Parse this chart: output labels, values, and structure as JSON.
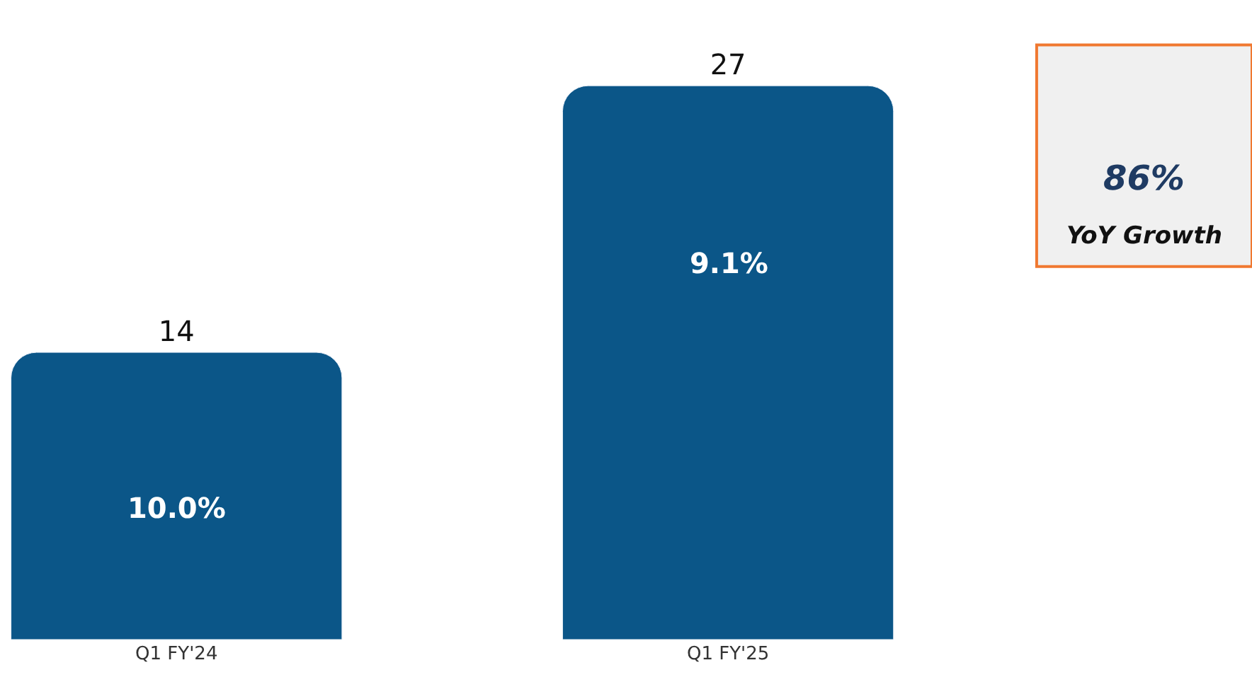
{
  "chart_data": {
    "type": "bar",
    "categories": [
      "Q1 FY'24",
      "Q1 FY'25"
    ],
    "values": [
      14,
      27
    ],
    "color": "#0b5688",
    "data_labels": true,
    "tick_labels": "x",
    "annotations": [
      "10.0%",
      "9.1%",
      "86%",
      "YoY Growth"
    ]
  }
}
